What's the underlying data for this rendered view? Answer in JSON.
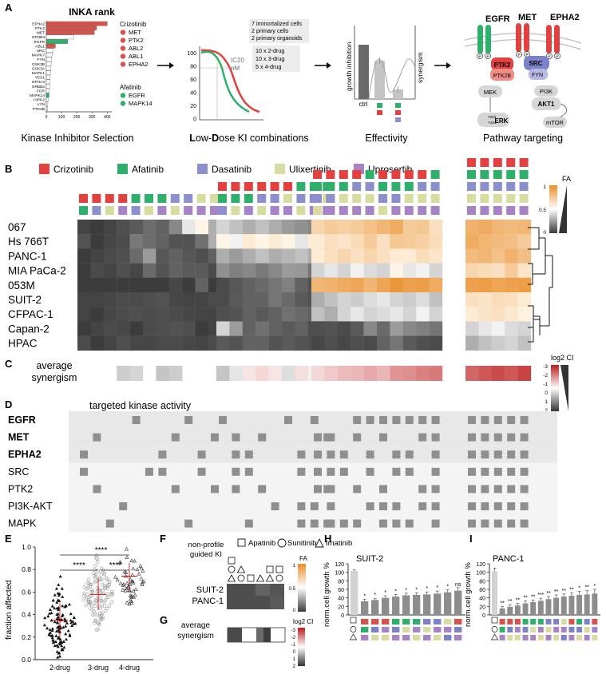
{
  "colors": {
    "crizotinib": "#e2413f",
    "afatinib": "#2fb06a",
    "dasatinib": "#8b8fce",
    "ulixertinib": "#d8dca0",
    "uprosertib": "#a882c6",
    "orange": "#e8902a",
    "red": "#d9524a",
    "green": "#2fb06a",
    "blue": "#7c82c9",
    "bar": "#8a8a8a",
    "bargrey": "#c8c8c8"
  },
  "panel_labels": {
    "A": "A",
    "B": "B",
    "C": "C",
    "D": "D",
    "E": "E",
    "F": "F",
    "G": "G",
    "H": "H",
    "I": "I"
  },
  "panelA": {
    "inka": {
      "title": "INKA rank",
      "kinases": [
        "EPHA2",
        "PTK2",
        "MET",
        "EPHB4",
        "EGFR",
        "ABL1",
        "SRC",
        "MAPK7",
        "FYN",
        "GSK3B",
        "GSK3A",
        "MAPK1",
        "YES1",
        "EPHA4",
        "ERBB2",
        "FGR",
        "MAPK14",
        "HIPK2",
        "LYN",
        "PTK2B"
      ],
      "values": [
        400,
        330,
        315,
        180,
        140,
        60,
        45,
        40,
        35,
        32,
        30,
        28,
        26,
        24,
        22,
        20,
        18,
        12,
        10,
        8
      ],
      "highlight": [
        "red",
        "red",
        "red",
        "none",
        "green",
        "red",
        "none",
        "none",
        "none",
        "none",
        "none",
        "none",
        "none",
        "none",
        "none",
        "none",
        "green",
        "none",
        "none",
        "none"
      ],
      "ticks": [
        "0",
        "100",
        "200",
        "300",
        "400"
      ],
      "crizotinib_title": "Crizotinib",
      "crizotinib_targets": [
        "MET",
        "PTK2",
        "ABL2",
        "ABL1",
        "EPHA2"
      ],
      "afatinib_title": "Afatinib",
      "afatinib_targets": [
        "EGFR",
        "MAPK14"
      ],
      "caption": "Kinase Inhibitor Selection"
    },
    "lowdose": {
      "yticks": [
        "100",
        "80",
        "60",
        "40",
        "20",
        "0"
      ],
      "ic20_label": "IC20",
      "nm_label": "nM",
      "box1": [
        "7 immortalized cells",
        "2 primary cells",
        "2 primary organoids"
      ],
      "box2": [
        "10 x 2-drug",
        "10 x 3-drug",
        "5 x 4-drug"
      ],
      "caption_bold1": "L",
      "caption_rest1": "ow-",
      "caption_bold2": "D",
      "caption_rest2": "ose KI combinations"
    },
    "effectivity": {
      "ylabel": "growth inhibition",
      "y2label": "synergism",
      "xlabel": "ctrl",
      "caption": "Effectivity"
    },
    "pathway": {
      "receptors": [
        "EGFR",
        "MET",
        "EPHA2"
      ],
      "nodes": [
        "PTK2",
        "PTK2B",
        "SRC",
        "FYN",
        "MEK",
        "PI3K",
        "AKT1",
        "ERK",
        "mTOR"
      ],
      "erk_phospho": [
        "T204",
        "Y204"
      ],
      "phospho_mark": "P",
      "caption": "Pathway targeting"
    }
  },
  "panelB": {
    "legend": [
      "Crizotinib",
      "Afatinib",
      "Dasatinib",
      "Ulixertinib",
      "Uprosertib"
    ],
    "cell_lines": [
      "067",
      "Hs 766T",
      "PANC-1",
      "MIA PaCa-2",
      "053M",
      "SUIT-2",
      "CFPAC-1",
      "Capan-2",
      "HPAC"
    ],
    "fa_legend": {
      "title": "FA",
      "max": "1",
      "mid": "0.5",
      "min": "0"
    },
    "heatmap_intensity": [
      [
        0.02,
        0.0,
        0.02,
        0.05,
        0.08,
        0.13,
        0.1,
        0.2,
        0.45,
        0.5,
        0.3,
        0.4,
        0.35,
        0.3,
        0.35,
        0.3,
        0.25,
        0.22,
        0.2,
        0.15,
        0.65,
        0.7,
        0.68,
        0.7,
        0.75,
        0.8,
        0.85,
        0.7,
        0.72,
        0.6,
        0.82,
        0.85,
        0.8,
        0.78,
        0.8
      ],
      [
        0.06,
        0.0,
        0.03,
        0.04,
        0.16,
        0.13,
        0.1,
        0.06,
        0.06,
        0.14,
        0.3,
        0.5,
        0.48,
        0.55,
        0.5,
        0.55,
        0.5,
        0.45,
        0.55,
        0.4,
        0.55,
        0.6,
        0.58,
        0.62,
        0.7,
        0.6,
        0.72,
        0.7,
        0.68,
        0.62,
        0.85,
        0.8,
        0.78,
        0.76,
        0.7
      ],
      [
        0.0,
        0.02,
        0.04,
        0.05,
        0.12,
        0.25,
        0.07,
        0.1,
        0.07,
        0.05,
        0.1,
        0.3,
        0.25,
        0.3,
        0.35,
        0.3,
        0.32,
        0.35,
        0.3,
        0.25,
        0.55,
        0.6,
        0.65,
        0.6,
        0.65,
        0.6,
        0.55,
        0.55,
        0.62,
        0.58,
        0.78,
        0.8,
        0.75,
        0.82,
        0.76
      ],
      [
        0.0,
        0.04,
        0.02,
        0.05,
        0.03,
        0.12,
        0.06,
        0.1,
        0.08,
        0.08,
        0.04,
        0.22,
        0.18,
        0.2,
        0.16,
        0.2,
        0.25,
        0.24,
        0.15,
        0.15,
        0.4,
        0.45,
        0.4,
        0.48,
        0.42,
        0.4,
        0.5,
        0.45,
        0.48,
        0.4,
        0.65,
        0.62,
        0.6,
        0.7,
        0.58
      ],
      [
        0.0,
        0.0,
        0.0,
        0.0,
        0.0,
        0.0,
        0.0,
        0.03,
        0.0,
        0.1,
        0.0,
        0.04,
        0.07,
        0.1,
        0.12,
        0.15,
        0.18,
        0.1,
        0.06,
        0.04,
        0.8,
        0.82,
        0.85,
        0.88,
        0.8,
        0.88,
        0.95,
        0.9,
        0.92,
        0.85,
        0.9,
        0.92,
        0.88,
        0.9,
        0.92
      ],
      [
        0.02,
        0.02,
        0.03,
        0.04,
        0.04,
        0.05,
        0.06,
        0.03,
        0.02,
        0.02,
        0.04,
        0.04,
        0.08,
        0.1,
        0.1,
        0.15,
        0.12,
        0.08,
        0.06,
        0.04,
        0.3,
        0.35,
        0.4,
        0.38,
        0.42,
        0.45,
        0.4,
        0.38,
        0.42,
        0.35,
        0.6,
        0.58,
        0.62,
        0.6,
        0.55
      ],
      [
        0.02,
        0.0,
        0.03,
        0.04,
        0.05,
        0.04,
        0.05,
        0.04,
        0.03,
        0.02,
        0.02,
        0.05,
        0.06,
        0.1,
        0.08,
        0.1,
        0.14,
        0.12,
        0.1,
        0.06,
        0.35,
        0.3,
        0.4,
        0.45,
        0.4,
        0.42,
        0.45,
        0.4,
        0.48,
        0.4,
        0.55,
        0.58,
        0.6,
        0.56,
        0.52
      ],
      [
        0.0,
        0.02,
        0.04,
        0.03,
        0.0,
        0.04,
        0.05,
        0.06,
        0.05,
        0.0,
        0.02,
        0.4,
        0.25,
        0.1,
        0.14,
        0.1,
        0.08,
        0.1,
        0.05,
        0.04,
        0.05,
        0.06,
        0.04,
        0.08,
        0.2,
        0.12,
        0.25,
        0.2,
        0.18,
        0.15,
        0.4,
        0.45,
        0.48,
        0.42,
        0.4
      ],
      [
        0.04,
        0.0,
        0.02,
        0.05,
        0.03,
        0.03,
        0.04,
        0.04,
        0.03,
        0.02,
        0.04,
        0.08,
        0.06,
        0.1,
        0.1,
        0.06,
        0.08,
        0.06,
        0.05,
        0.03,
        0.03,
        0.05,
        0.03,
        0.05,
        0.04,
        0.1,
        0.15,
        0.08,
        0.05,
        0.04,
        0.3,
        0.35,
        0.38,
        0.4,
        0.35
      ]
    ]
  },
  "panelC": {
    "label": [
      "average",
      "synergism"
    ],
    "legend": {
      "title": "log2 CI",
      "ticks": [
        "-3",
        "-2",
        "-1",
        "0",
        "1",
        "2"
      ]
    },
    "synergy": [
      null,
      null,
      null,
      0.5,
      0.4,
      null,
      0.6,
      0.5,
      null,
      null,
      null,
      0.6,
      0.2,
      -0.1,
      -0.3,
      -0.1,
      0.3,
      -0.2,
      0.05,
      0.1,
      -0.3,
      -0.5,
      -0.7,
      -0.8,
      -1.0,
      -0.8,
      -1.3,
      -1.4,
      -1.6,
      -1.7,
      -2.0,
      -2.2,
      -2.4,
      -2.2,
      -2.5
    ]
  },
  "panelD": {
    "title": "targeted kinase activity",
    "rows": [
      "EGFR",
      "MET",
      "EPHA2",
      "SRC",
      "PTK2",
      "PI3K-AKT",
      "MAPK"
    ],
    "bold": [
      true,
      true,
      true,
      false,
      false,
      false,
      false
    ],
    "matrix": [
      [
        0,
        0,
        0,
        0,
        1,
        0,
        0,
        0,
        1,
        0,
        0,
        1,
        0,
        0,
        0,
        0,
        1,
        0,
        1,
        0,
        0,
        0,
        0,
        1,
        1,
        1,
        1,
        1,
        1,
        1,
        1,
        1,
        1,
        1,
        1
      ],
      [
        0,
        1,
        0,
        0,
        0,
        0,
        0,
        1,
        0,
        0,
        1,
        0,
        1,
        0,
        1,
        0,
        0,
        0,
        0,
        1,
        1,
        1,
        0,
        1,
        0,
        1,
        0,
        0,
        1,
        1,
        1,
        1,
        1,
        1,
        1
      ],
      [
        1,
        0,
        0,
        0,
        0,
        0,
        1,
        0,
        0,
        1,
        0,
        0,
        1,
        1,
        0,
        0,
        0,
        1,
        0,
        0,
        1,
        1,
        1,
        0,
        1,
        0,
        1,
        1,
        0,
        1,
        1,
        1,
        1,
        1,
        1
      ],
      [
        1,
        0,
        0,
        0,
        0,
        1,
        1,
        0,
        0,
        1,
        0,
        0,
        1,
        1,
        0,
        0,
        0,
        1,
        0,
        0,
        1,
        1,
        1,
        0,
        1,
        0,
        1,
        1,
        0,
        1,
        1,
        1,
        1,
        1,
        1
      ],
      [
        0,
        1,
        0,
        0,
        0,
        0,
        0,
        1,
        0,
        0,
        1,
        0,
        1,
        0,
        1,
        0,
        0,
        0,
        0,
        1,
        1,
        1,
        0,
        1,
        0,
        1,
        0,
        0,
        1,
        1,
        1,
        1,
        1,
        1,
        1
      ],
      [
        0,
        0,
        0,
        1,
        0,
        0,
        0,
        0,
        0,
        0,
        0,
        0,
        0,
        0,
        0,
        1,
        0,
        1,
        1,
        0,
        0,
        1,
        0,
        0,
        1,
        1,
        1,
        0,
        1,
        1,
        1,
        1,
        1,
        1,
        1
      ],
      [
        0,
        0,
        1,
        0,
        0,
        0,
        0,
        0,
        1,
        0,
        0,
        0,
        0,
        1,
        0,
        0,
        0,
        1,
        1,
        1,
        0,
        1,
        1,
        1,
        0,
        1,
        1,
        1,
        0,
        1,
        1,
        1,
        1,
        1,
        1
      ]
    ]
  },
  "panelE": {
    "ylabel": "fraction affected",
    "yticks": [
      "1.0",
      "0.8",
      "0.6",
      "0.4",
      "0.2",
      "0.0"
    ],
    "groups": [
      "2-drug",
      "3-drug",
      "4-drug"
    ],
    "means": [
      0.35,
      0.58,
      0.74
    ],
    "sd": [
      0.15,
      0.14,
      0.12
    ],
    "sig_top": "****",
    "sig_left": "****",
    "sig_right": "****"
  },
  "panelF": {
    "header": [
      "non-profile",
      "guided KI"
    ],
    "legend": [
      "Apatinib",
      "Sunitinib",
      "Imatinib"
    ],
    "rows": [
      "SUIT-2",
      "PANC-1"
    ],
    "fa_legend": {
      "title": "FA",
      "max": "1",
      "mid": "0.5",
      "min": "0"
    }
  },
  "panelG": {
    "label": [
      "average",
      "synergism"
    ],
    "legend": {
      "title": "log2 CI",
      "ticks": [
        "-3",
        "-2",
        "-1",
        "0",
        "1",
        "2"
      ]
    }
  },
  "panelH": {
    "title": "SUIT-2",
    "ylabel": "norm.cell growth %",
    "yticks": [
      "120",
      "100",
      "80",
      "60",
      "40",
      "20",
      "0"
    ],
    "values": [
      103,
      32,
      35,
      40,
      43,
      46,
      47,
      48,
      50,
      53,
      57
    ],
    "errors": [
      3,
      5,
      4,
      5,
      5,
      5,
      5,
      6,
      6,
      6,
      7
    ],
    "stars": [
      "",
      "*",
      "*",
      "*",
      "*",
      "*",
      "*",
      "*",
      "*",
      "*",
      "ns"
    ]
  },
  "panelI": {
    "title": "PANC-1",
    "ylabel": "norm.cell growth %",
    "yticks": [
      "120",
      "100",
      "80",
      "60",
      "40",
      "20",
      "0"
    ],
    "values": [
      102,
      15,
      19,
      22,
      27,
      30,
      33,
      37,
      40,
      43,
      45,
      47,
      48,
      50
    ],
    "errors": [
      8,
      5,
      5,
      5,
      6,
      5,
      6,
      6,
      7,
      6,
      7,
      8,
      9,
      10
    ],
    "stars": [
      "",
      "**",
      "**",
      "**",
      "**",
      "**",
      "***",
      "**",
      "**",
      "**",
      "**",
      "*",
      "**",
      "*"
    ]
  }
}
